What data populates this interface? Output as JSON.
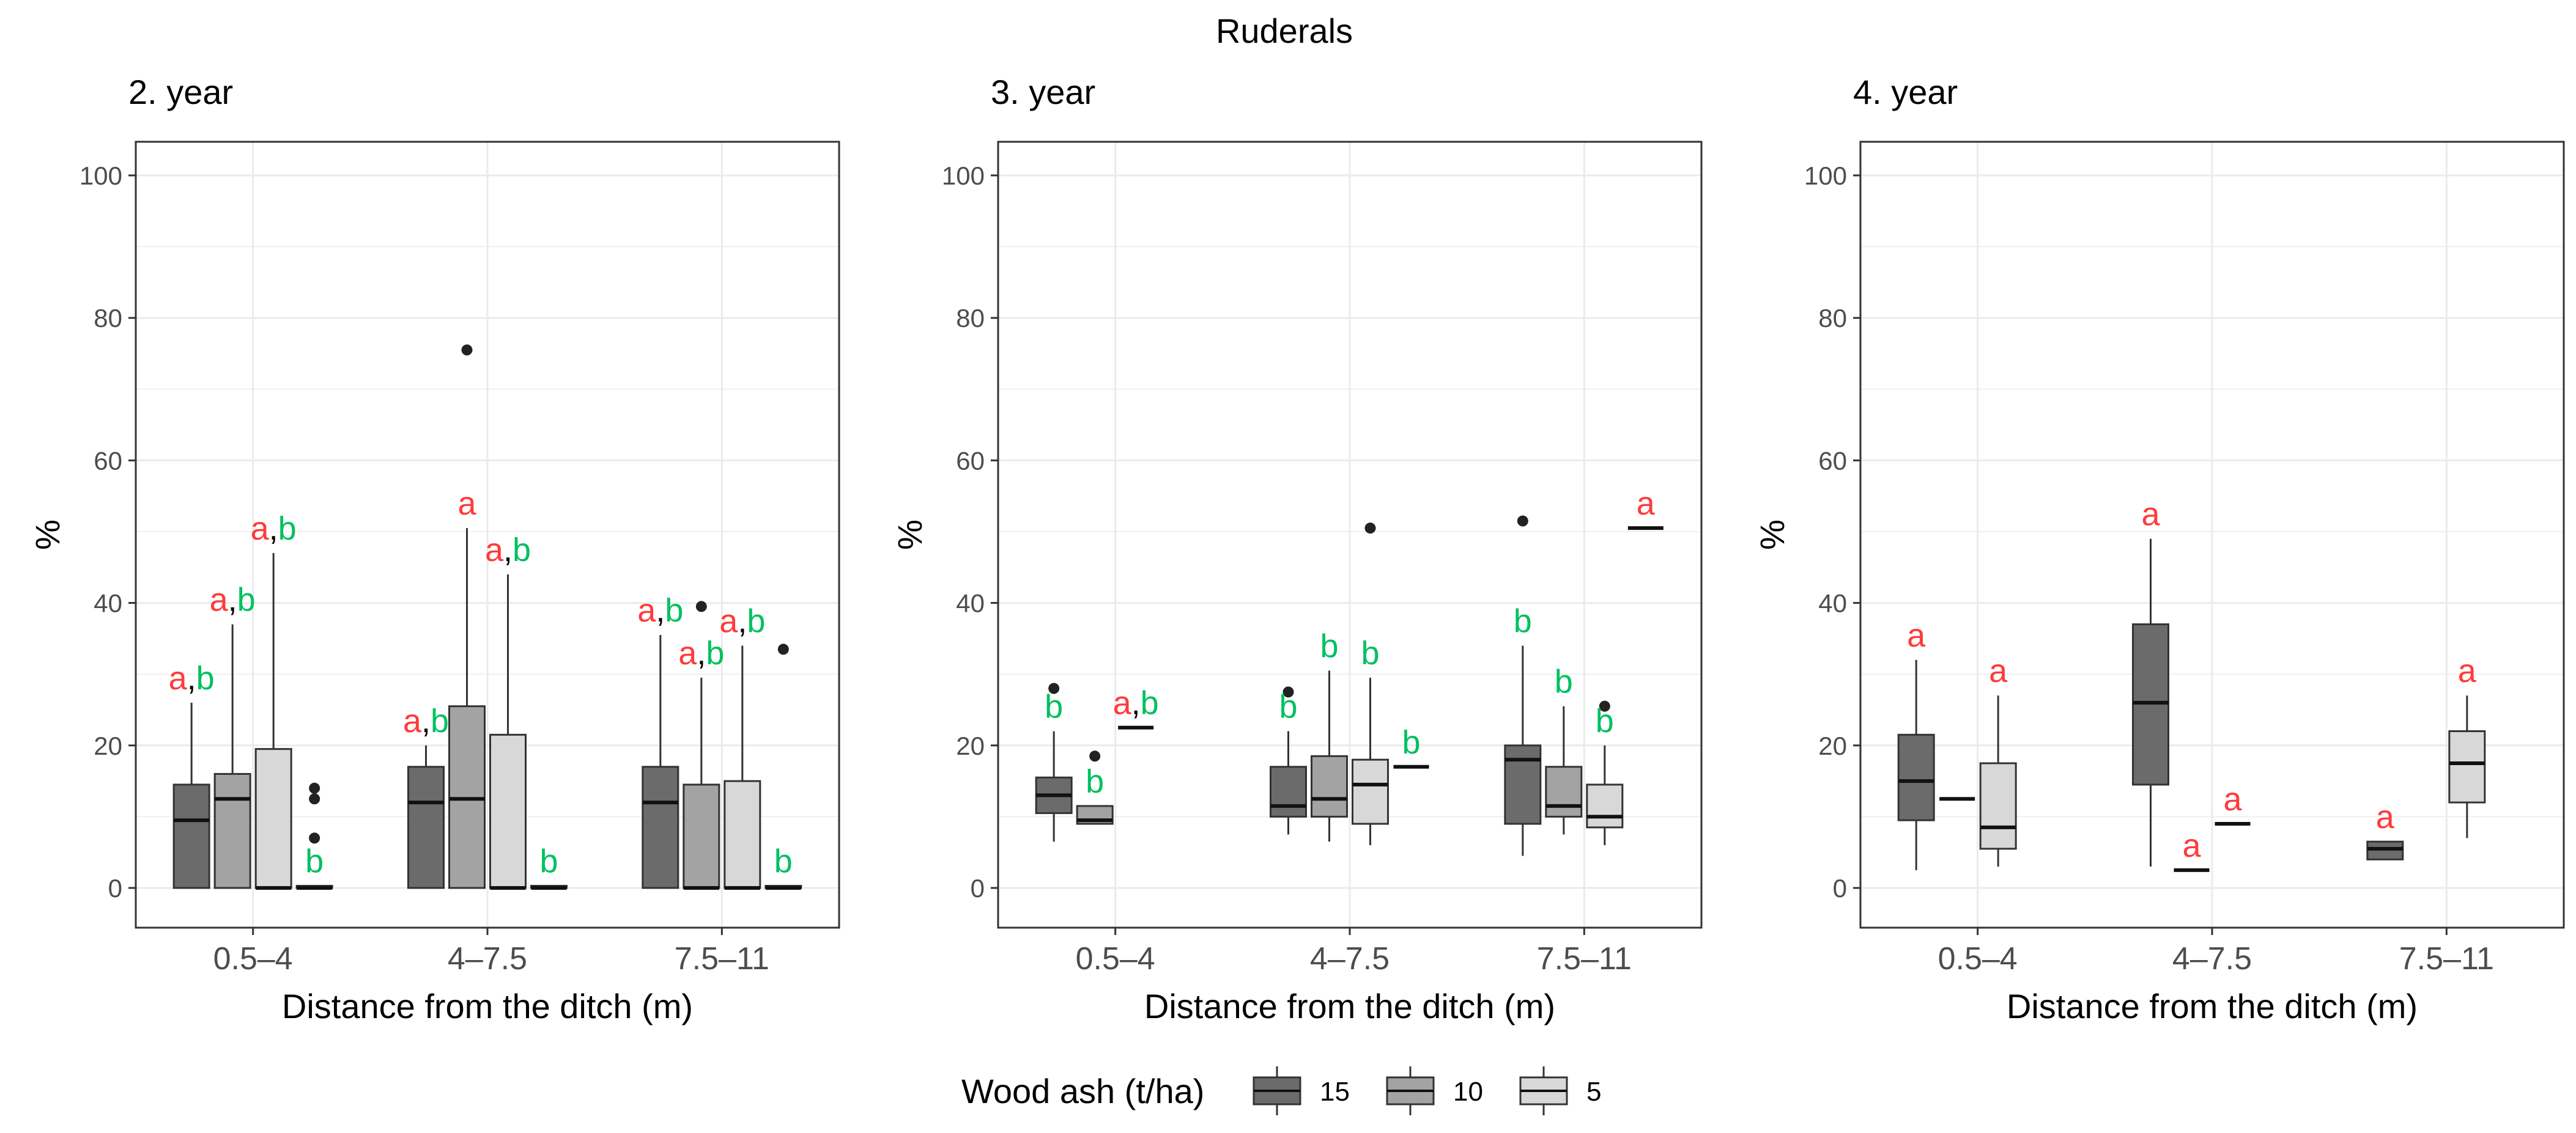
{
  "chart_data": {
    "type": "boxplot",
    "title": "Ruderals",
    "ylabel": "%",
    "xlabel": "Distance from the ditch (m)",
    "ylim": [
      0,
      100
    ],
    "yticks": [
      0,
      20,
      40,
      60,
      80,
      100
    ],
    "categories": [
      "0.5–4",
      "4–7.5",
      "7.5–11"
    ],
    "legend": {
      "title": "Wood ash (t/ha)",
      "placement": "bottom",
      "items": [
        {
          "label": "15",
          "color": "#6b6b6b"
        },
        {
          "label": "10",
          "color": "#a3a3a3"
        },
        {
          "label": "5",
          "color": "#d8d8d8"
        }
      ]
    },
    "colors": {
      "letter_a": "#ff3b3b",
      "letter_b": "#00c060",
      "outlier": "#222222"
    },
    "panels": [
      {
        "title": "2. year",
        "categories": [
          {
            "name": "0.5–4",
            "boxes": [
              {
                "group": "15",
                "whisker_low": 0,
                "q1": 0,
                "median": 9.5,
                "q3": 14.5,
                "whisker_high": 26,
                "outliers": [],
                "letters": "a,b"
              },
              {
                "group": "10",
                "whisker_low": 0,
                "q1": 0,
                "median": 12.5,
                "q3": 16,
                "whisker_high": 37,
                "outliers": [],
                "letters": "a,b"
              },
              {
                "group": "5",
                "whisker_low": 0,
                "q1": 0,
                "median": 0,
                "q3": 19.5,
                "whisker_high": 47,
                "outliers": [],
                "letters": "a,b"
              },
              {
                "group": "0",
                "whisker_low": 0,
                "q1": 0,
                "median": 0,
                "q3": 0.3,
                "whisker_high": 0.3,
                "outliers": [
                  7,
                  12.5,
                  14
                ],
                "letters": "b"
              }
            ]
          },
          {
            "name": "4–7.5",
            "boxes": [
              {
                "group": "15",
                "whisker_low": 0,
                "q1": 0,
                "median": 12,
                "q3": 17,
                "whisker_high": 20,
                "outliers": [],
                "letters": "a,b"
              },
              {
                "group": "10",
                "whisker_low": 0,
                "q1": 0,
                "median": 12.5,
                "q3": 25.5,
                "whisker_high": 50.5,
                "outliers": [
                  75.5
                ],
                "letters": "a"
              },
              {
                "group": "5",
                "whisker_low": 0,
                "q1": 0,
                "median": 0,
                "q3": 21.5,
                "whisker_high": 44,
                "outliers": [],
                "letters": "a,b"
              },
              {
                "group": "0",
                "whisker_low": 0,
                "q1": 0,
                "median": 0,
                "q3": 0.3,
                "whisker_high": 0.3,
                "outliers": [],
                "letters": "b"
              }
            ]
          },
          {
            "name": "7.5–11",
            "boxes": [
              {
                "group": "15",
                "whisker_low": 0,
                "q1": 0,
                "median": 12,
                "q3": 17,
                "whisker_high": 35.5,
                "outliers": [],
                "letters": "a,b"
              },
              {
                "group": "10",
                "whisker_low": 0,
                "q1": 0,
                "median": 0,
                "q3": 14.5,
                "whisker_high": 29.5,
                "outliers": [
                  39.5
                ],
                "letters": "a,b"
              },
              {
                "group": "5",
                "whisker_low": 0,
                "q1": 0,
                "median": 0,
                "q3": 15,
                "whisker_high": 34,
                "outliers": [],
                "letters": "a,b"
              },
              {
                "group": "0",
                "whisker_low": 0,
                "q1": 0,
                "median": 0,
                "q3": 0.3,
                "whisker_high": 0.3,
                "outliers": [
                  33.5
                ],
                "letters": "b"
              }
            ]
          }
        ]
      },
      {
        "title": "3. year",
        "categories": [
          {
            "name": "0.5–4",
            "boxes": [
              {
                "group": "15",
                "whisker_low": 6.5,
                "q1": 10.5,
                "median": 13,
                "q3": 15.5,
                "whisker_high": 22,
                "outliers": [
                  28
                ],
                "letters": "b"
              },
              {
                "group": "10",
                "whisker_low": 9,
                "q1": 9,
                "median": 9.5,
                "q3": 11.5,
                "whisker_high": 11.5,
                "outliers": [
                  18.5
                ],
                "letters": "b"
              },
              {
                "group": "5",
                "whisker_low": 22.5,
                "q1": 22.5,
                "median": 22.5,
                "q3": 22.5,
                "whisker_high": 22.5,
                "outliers": [],
                "letters": "a,b"
              }
            ]
          },
          {
            "name": "4–7.5",
            "boxes": [
              {
                "group": "15",
                "whisker_low": 7.5,
                "q1": 10,
                "median": 11.5,
                "q3": 17,
                "whisker_high": 22,
                "outliers": [
                  27.5
                ],
                "letters": "b"
              },
              {
                "group": "10",
                "whisker_low": 6.5,
                "q1": 10,
                "median": 12.5,
                "q3": 18.5,
                "whisker_high": 30.5,
                "outliers": [],
                "letters": "b"
              },
              {
                "group": "5",
                "whisker_low": 6,
                "q1": 9,
                "median": 14.5,
                "q3": 18,
                "whisker_high": 29.5,
                "outliers": [
                  50.5
                ],
                "letters": "b"
              },
              {
                "group": "0",
                "whisker_low": 17,
                "q1": 17,
                "median": 17,
                "q3": 17,
                "whisker_high": 17,
                "outliers": [],
                "letters": "b"
              }
            ]
          },
          {
            "name": "7.5–11",
            "boxes": [
              {
                "group": "15",
                "whisker_low": 4.5,
                "q1": 9,
                "median": 18,
                "q3": 20,
                "whisker_high": 34,
                "outliers": [
                  51.5
                ],
                "letters": "b"
              },
              {
                "group": "10",
                "whisker_low": 7.5,
                "q1": 10,
                "median": 11.5,
                "q3": 17,
                "whisker_high": 25.5,
                "outliers": [],
                "letters": "b"
              },
              {
                "group": "5",
                "whisker_low": 6,
                "q1": 8.5,
                "median": 10,
                "q3": 14.5,
                "whisker_high": 20,
                "outliers": [
                  25.5
                ],
                "letters": "b"
              },
              {
                "group": "0",
                "whisker_low": 50.5,
                "q1": 50.5,
                "median": 50.5,
                "q3": 50.5,
                "whisker_high": 50.5,
                "outliers": [],
                "letters": "a"
              }
            ]
          }
        ]
      },
      {
        "title": "4. year",
        "categories": [
          {
            "name": "0.5–4",
            "boxes": [
              {
                "group": "15",
                "whisker_low": 2.5,
                "q1": 9.5,
                "median": 15,
                "q3": 21.5,
                "whisker_high": 32,
                "outliers": [],
                "letters": "a"
              },
              {
                "group": "10",
                "whisker_low": 12.5,
                "q1": 12.5,
                "median": 12.5,
                "q3": 12.5,
                "whisker_high": 12.5,
                "outliers": [],
                "letters": ""
              },
              {
                "group": "5",
                "whisker_low": 3,
                "q1": 5.5,
                "median": 8.5,
                "q3": 17.5,
                "whisker_high": 27,
                "outliers": [],
                "letters": "a"
              }
            ]
          },
          {
            "name": "4–7.5",
            "boxes": [
              {
                "group": "15",
                "whisker_low": 3,
                "q1": 14.5,
                "median": 26,
                "q3": 37,
                "whisker_high": 49,
                "outliers": [],
                "letters": "a"
              },
              {
                "group": "10",
                "whisker_low": 2.5,
                "q1": 2.5,
                "median": 2.5,
                "q3": 2.5,
                "whisker_high": 2.5,
                "outliers": [],
                "letters": "a"
              },
              {
                "group": "5",
                "whisker_low": 9,
                "q1": 9,
                "median": 9,
                "q3": 9,
                "whisker_high": 9,
                "outliers": [],
                "letters": "a"
              }
            ]
          },
          {
            "name": "7.5–11",
            "boxes": [
              {
                "group": "15",
                "whisker_low": 4,
                "q1": 4,
                "median": 5.5,
                "q3": 6.5,
                "whisker_high": 6.5,
                "outliers": [],
                "letters": "a"
              },
              {
                "group": "5",
                "whisker_low": 7,
                "q1": 12,
                "median": 17.5,
                "q3": 22,
                "whisker_high": 27,
                "outliers": [],
                "letters": "a"
              }
            ]
          }
        ]
      }
    ]
  }
}
